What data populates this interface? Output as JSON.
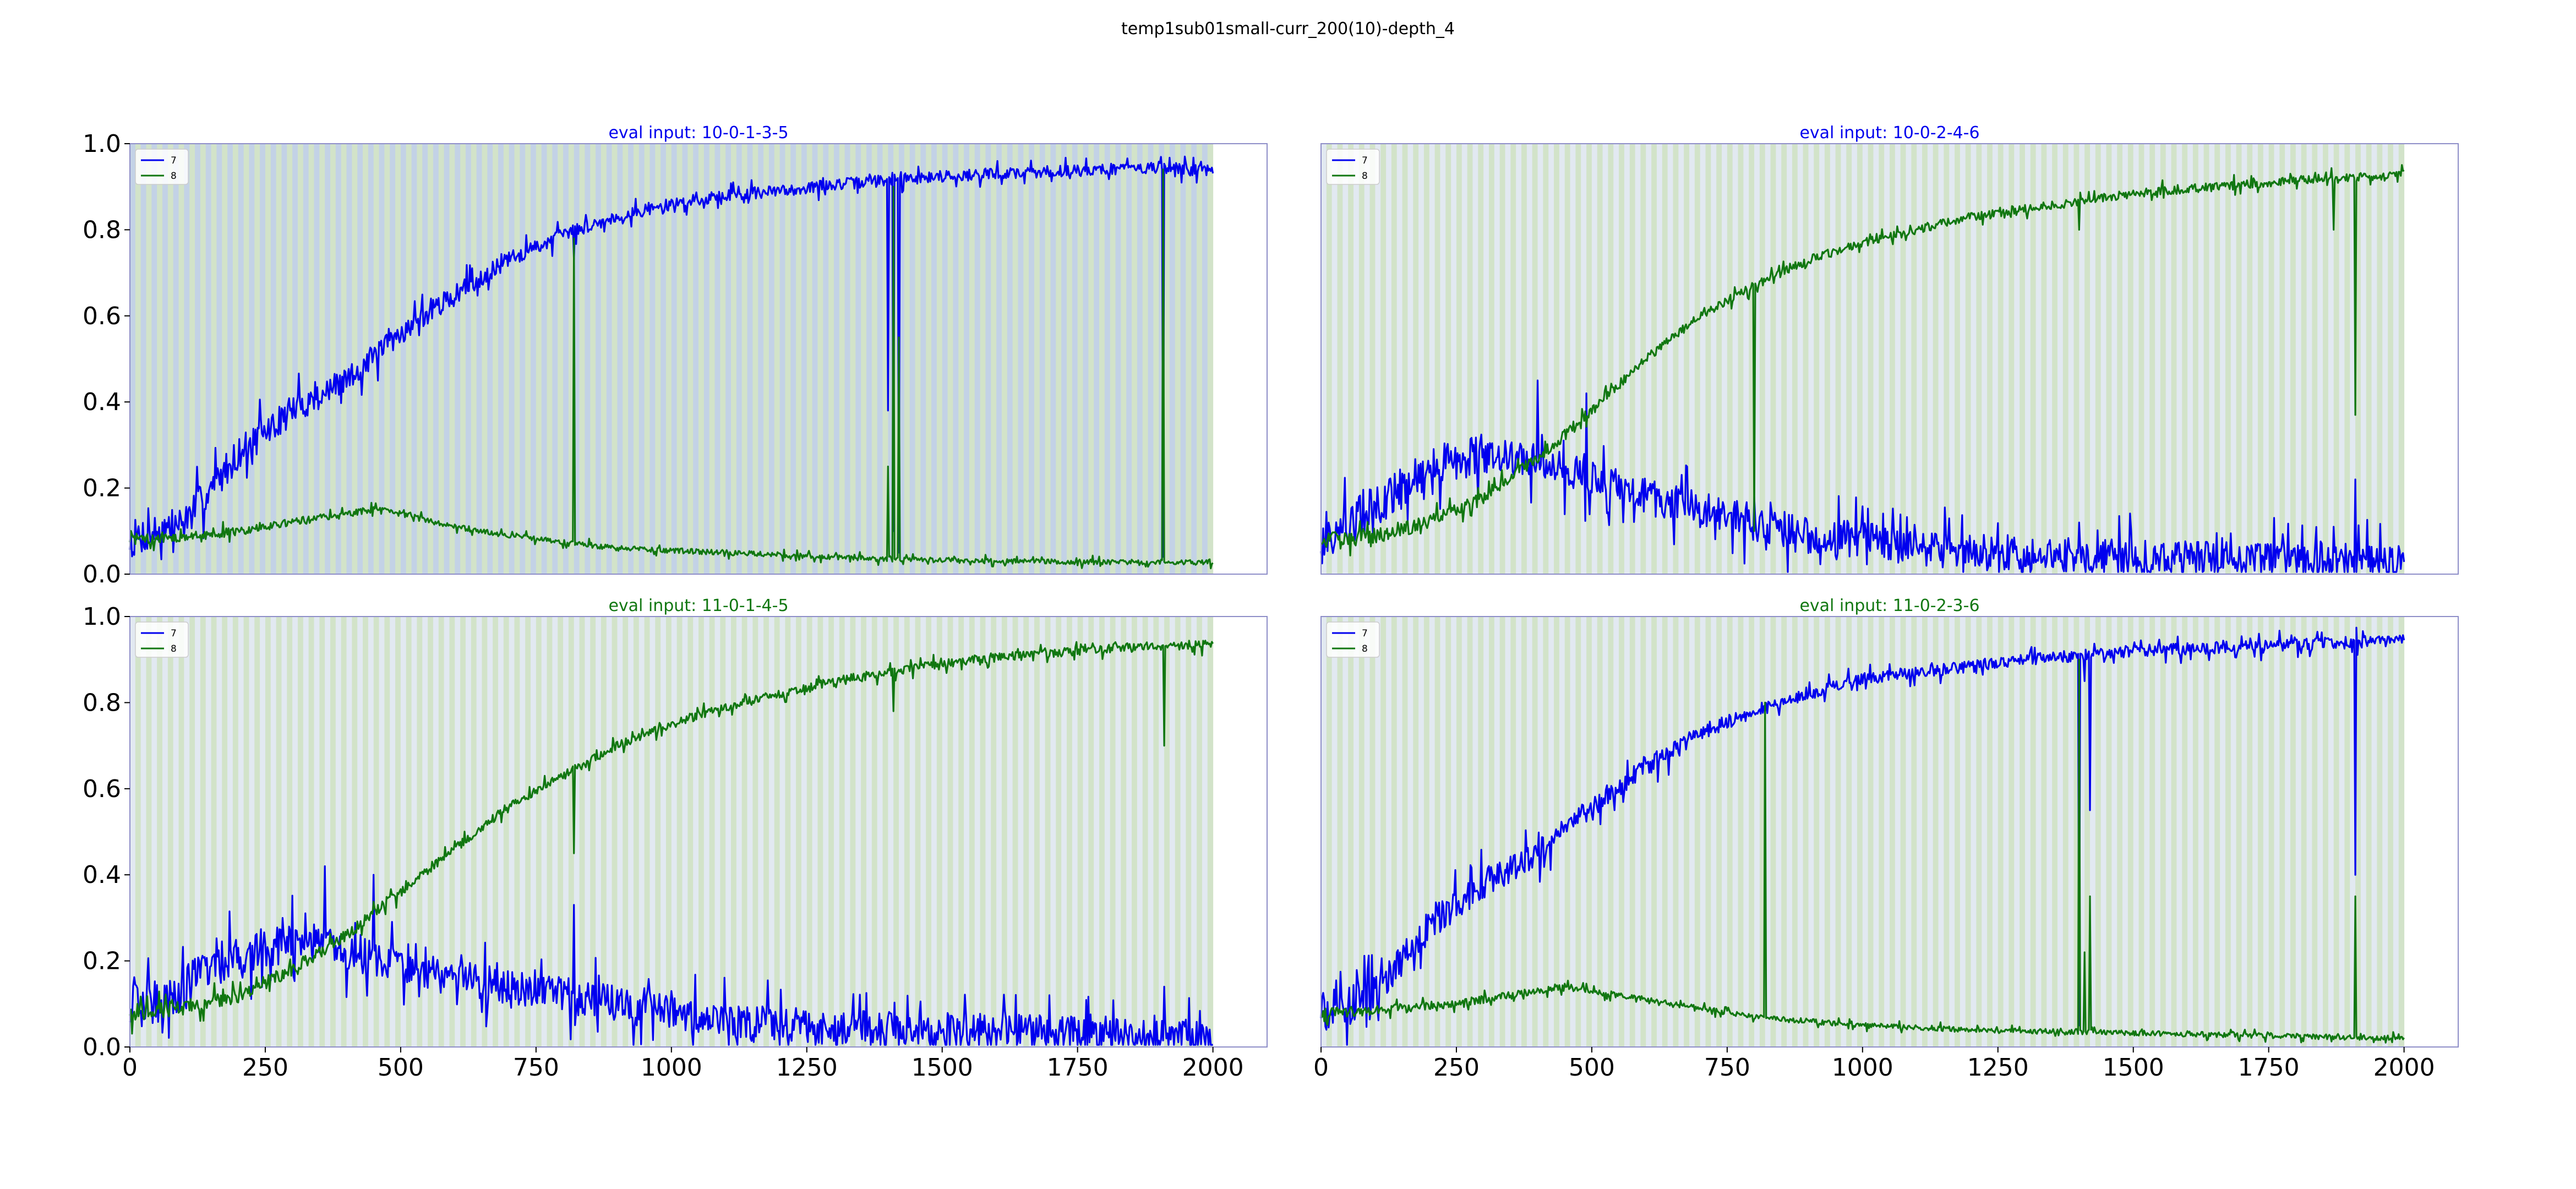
{
  "figure": {
    "title": "temp1sub01small-curr_200(10)-depth_4"
  },
  "colors": {
    "series_7": "#0000ee",
    "series_8": "#117711",
    "band_light": "#e2e9f1",
    "band_blue": "#c3d2e6",
    "band_green": "#d2e3c9",
    "frame": "#8e8ec8"
  },
  "chart_data": [
    {
      "type": "line",
      "title": "eval input: 10-0-1-3-5",
      "title_color": "#0000ee",
      "background": "dark",
      "xlim": [
        0,
        2100
      ],
      "ylim": [
        0.0,
        1.0
      ],
      "xticks": [
        0,
        250,
        500,
        750,
        1000,
        1250,
        1500,
        1750,
        2000
      ],
      "yticks": [
        "0.0",
        "0.2",
        "0.4",
        "0.6",
        "0.8",
        "1.0"
      ],
      "show_xticks": false,
      "show_yticks": true,
      "legend": "top-left",
      "series": [
        {
          "name": "7",
          "color": "#0000ee",
          "noise": 0.045,
          "noise_decay": 0.3,
          "points": [
            [
              0,
              0.08
            ],
            [
              100,
              0.12
            ],
            [
              200,
              0.28
            ],
            [
              300,
              0.38
            ],
            [
              400,
              0.45
            ],
            [
              500,
              0.56
            ],
            [
              600,
              0.65
            ],
            [
              700,
              0.73
            ],
            [
              800,
              0.79
            ],
            [
              900,
              0.83
            ],
            [
              1000,
              0.86
            ],
            [
              1100,
              0.88
            ],
            [
              1200,
              0.89
            ],
            [
              1300,
              0.905
            ],
            [
              1400,
              0.915
            ],
            [
              1500,
              0.925
            ],
            [
              1600,
              0.93
            ],
            [
              1700,
              0.935
            ],
            [
              1800,
              0.94
            ],
            [
              1900,
              0.945
            ],
            [
              2000,
              0.935
            ]
          ],
          "spikes": [
            [
              820,
              0.73
            ],
            [
              1400,
              0.38
            ],
            [
              1410,
              0.1
            ],
            [
              1415,
              0.8
            ],
            [
              1420,
              0.05
            ],
            [
              1908,
              0.04
            ]
          ]
        },
        {
          "name": "8",
          "color": "#117711",
          "noise": 0.012,
          "noise_decay": 0.5,
          "points": [
            [
              0,
              0.08
            ],
            [
              100,
              0.085
            ],
            [
              200,
              0.1
            ],
            [
              300,
              0.12
            ],
            [
              400,
              0.14
            ],
            [
              450,
              0.15
            ],
            [
              500,
              0.14
            ],
            [
              600,
              0.11
            ],
            [
              700,
              0.09
            ],
            [
              800,
              0.075
            ],
            [
              900,
              0.06
            ],
            [
              1000,
              0.055
            ],
            [
              1200,
              0.045
            ],
            [
              1400,
              0.035
            ],
            [
              1600,
              0.03
            ],
            [
              1800,
              0.028
            ],
            [
              2000,
              0.027
            ]
          ],
          "spikes": [
            [
              820,
              0.78
            ],
            [
              1400,
              0.25
            ],
            [
              1410,
              0.9
            ],
            [
              1415,
              0.1
            ],
            [
              1420,
              0.55
            ],
            [
              1908,
              0.94
            ]
          ]
        }
      ]
    },
    {
      "type": "line",
      "title": "eval input: 10-0-2-4-6",
      "title_color": "#0000ee",
      "background": "light",
      "xlim": [
        0,
        2100
      ],
      "ylim": [
        0.0,
        1.0
      ],
      "xticks": [
        0,
        250,
        500,
        750,
        1000,
        1250,
        1500,
        1750,
        2000
      ],
      "yticks": [
        "0.0",
        "0.2",
        "0.4",
        "0.6",
        "0.8",
        "1.0"
      ],
      "show_xticks": false,
      "show_yticks": false,
      "legend": "top-left",
      "series": [
        {
          "name": "7",
          "color": "#0000ee",
          "noise": 0.06,
          "noise_decay": 0.7,
          "points": [
            [
              0,
              0.08
            ],
            [
              100,
              0.15
            ],
            [
              200,
              0.25
            ],
            [
              300,
              0.28
            ],
            [
              400,
              0.26
            ],
            [
              500,
              0.22
            ],
            [
              600,
              0.18
            ],
            [
              700,
              0.15
            ],
            [
              800,
              0.12
            ],
            [
              900,
              0.09
            ],
            [
              1000,
              0.08
            ],
            [
              1100,
              0.06
            ],
            [
              1200,
              0.05
            ],
            [
              1300,
              0.05
            ],
            [
              1400,
              0.045
            ],
            [
              1500,
              0.04
            ],
            [
              1600,
              0.035
            ],
            [
              1700,
              0.032
            ],
            [
              1800,
              0.03
            ],
            [
              1900,
              0.03
            ],
            [
              2000,
              0.025
            ]
          ],
          "spikes": [
            [
              400,
              0.45
            ],
            [
              490,
              0.42
            ],
            [
              800,
              0.18
            ],
            [
              1400,
              0.12
            ],
            [
              1870,
              0.11
            ],
            [
              1910,
              0.22
            ]
          ]
        },
        {
          "name": "8",
          "color": "#117711",
          "noise": 0.02,
          "noise_decay": 0.5,
          "points": [
            [
              0,
              0.08
            ],
            [
              100,
              0.09
            ],
            [
              200,
              0.12
            ],
            [
              300,
              0.18
            ],
            [
              400,
              0.27
            ],
            [
              500,
              0.38
            ],
            [
              600,
              0.5
            ],
            [
              700,
              0.6
            ],
            [
              800,
              0.67
            ],
            [
              900,
              0.73
            ],
            [
              1000,
              0.77
            ],
            [
              1100,
              0.8
            ],
            [
              1200,
              0.83
            ],
            [
              1300,
              0.85
            ],
            [
              1400,
              0.865
            ],
            [
              1500,
              0.885
            ],
            [
              1600,
              0.895
            ],
            [
              1700,
              0.905
            ],
            [
              1800,
              0.915
            ],
            [
              1900,
              0.92
            ],
            [
              2000,
              0.93
            ]
          ],
          "spikes": [
            [
              800,
              0.1
            ],
            [
              1400,
              0.8
            ],
            [
              1870,
              0.8
            ],
            [
              1910,
              0.37
            ]
          ]
        }
      ]
    },
    {
      "type": "line",
      "title": "eval input: 11-0-1-4-5",
      "title_color": "#117711",
      "background": "light",
      "xlim": [
        0,
        2100
      ],
      "ylim": [
        0.0,
        1.0
      ],
      "xticks": [
        0,
        250,
        500,
        750,
        1000,
        1250,
        1500,
        1750,
        2000
      ],
      "yticks": [
        "0.0",
        "0.2",
        "0.4",
        "0.6",
        "0.8",
        "1.0"
      ],
      "show_xticks": true,
      "show_yticks": true,
      "legend": "top-left",
      "series": [
        {
          "name": "7",
          "color": "#0000ee",
          "noise": 0.06,
          "noise_decay": 0.7,
          "points": [
            [
              0,
              0.08
            ],
            [
              100,
              0.14
            ],
            [
              200,
              0.22
            ],
            [
              300,
              0.24
            ],
            [
              400,
              0.22
            ],
            [
              500,
              0.19
            ],
            [
              600,
              0.16
            ],
            [
              700,
              0.14
            ],
            [
              800,
              0.12
            ],
            [
              900,
              0.1
            ],
            [
              1000,
              0.09
            ],
            [
              1050,
              0.06
            ],
            [
              1200,
              0.05
            ],
            [
              1400,
              0.04
            ],
            [
              1600,
              0.035
            ],
            [
              1800,
              0.03
            ],
            [
              2000,
              0.02
            ]
          ],
          "spikes": [
            [
              360,
              0.42
            ],
            [
              450,
              0.4
            ],
            [
              820,
              0.33
            ],
            [
              1400,
              0.07
            ],
            [
              1910,
              0.14
            ]
          ]
        },
        {
          "name": "8",
          "color": "#117711",
          "noise": 0.02,
          "noise_decay": 0.5,
          "points": [
            [
              0,
              0.08
            ],
            [
              100,
              0.09
            ],
            [
              200,
              0.12
            ],
            [
              300,
              0.18
            ],
            [
              400,
              0.26
            ],
            [
              500,
              0.36
            ],
            [
              600,
              0.46
            ],
            [
              700,
              0.56
            ],
            [
              800,
              0.63
            ],
            [
              900,
              0.7
            ],
            [
              1000,
              0.75
            ],
            [
              1100,
              0.79
            ],
            [
              1200,
              0.82
            ],
            [
              1300,
              0.85
            ],
            [
              1400,
              0.87
            ],
            [
              1500,
              0.89
            ],
            [
              1600,
              0.905
            ],
            [
              1700,
              0.915
            ],
            [
              1800,
              0.925
            ],
            [
              1900,
              0.93
            ],
            [
              2000,
              0.935
            ]
          ],
          "spikes": [
            [
              820,
              0.45
            ],
            [
              1410,
              0.78
            ],
            [
              1910,
              0.7
            ]
          ]
        }
      ]
    },
    {
      "type": "line",
      "title": "eval input: 11-0-2-3-6",
      "title_color": "#117711",
      "background": "light",
      "xlim": [
        0,
        2100
      ],
      "ylim": [
        0.0,
        1.0
      ],
      "xticks": [
        0,
        250,
        500,
        750,
        1000,
        1250,
        1500,
        1750,
        2000
      ],
      "yticks": [
        "0.0",
        "0.2",
        "0.4",
        "0.6",
        "0.8",
        "1.0"
      ],
      "show_xticks": true,
      "show_yticks": false,
      "legend": "top-left",
      "series": [
        {
          "name": "7",
          "color": "#0000ee",
          "noise": 0.045,
          "noise_decay": 0.3,
          "points": [
            [
              0,
              0.08
            ],
            [
              100,
              0.12
            ],
            [
              200,
              0.28
            ],
            [
              300,
              0.38
            ],
            [
              400,
              0.45
            ],
            [
              500,
              0.56
            ],
            [
              600,
              0.65
            ],
            [
              700,
              0.73
            ],
            [
              800,
              0.78
            ],
            [
              900,
              0.82
            ],
            [
              1000,
              0.855
            ],
            [
              1100,
              0.87
            ],
            [
              1200,
              0.885
            ],
            [
              1300,
              0.9
            ],
            [
              1400,
              0.91
            ],
            [
              1500,
              0.92
            ],
            [
              1600,
              0.925
            ],
            [
              1700,
              0.93
            ],
            [
              1800,
              0.935
            ],
            [
              1900,
              0.94
            ],
            [
              2000,
              0.945
            ]
          ],
          "spikes": [
            [
              820,
              0.78
            ],
            [
              1400,
              0.05
            ],
            [
              1410,
              0.85
            ],
            [
              1415,
              0.06
            ],
            [
              1420,
              0.55
            ],
            [
              1910,
              0.4
            ]
          ]
        },
        {
          "name": "8",
          "color": "#117711",
          "noise": 0.012,
          "noise_decay": 0.5,
          "points": [
            [
              0,
              0.08
            ],
            [
              100,
              0.085
            ],
            [
              200,
              0.095
            ],
            [
              300,
              0.11
            ],
            [
              400,
              0.13
            ],
            [
              450,
              0.14
            ],
            [
              500,
              0.13
            ],
            [
              600,
              0.11
            ],
            [
              700,
              0.09
            ],
            [
              800,
              0.07
            ],
            [
              900,
              0.06
            ],
            [
              1000,
              0.05
            ],
            [
              1200,
              0.04
            ],
            [
              1400,
              0.035
            ],
            [
              1600,
              0.03
            ],
            [
              1800,
              0.025
            ],
            [
              2000,
              0.02
            ]
          ],
          "spikes": [
            [
              820,
              0.8
            ],
            [
              1400,
              0.9
            ],
            [
              1410,
              0.22
            ],
            [
              1415,
              0.1
            ],
            [
              1420,
              0.35
            ],
            [
              1910,
              0.35
            ]
          ]
        }
      ]
    }
  ]
}
